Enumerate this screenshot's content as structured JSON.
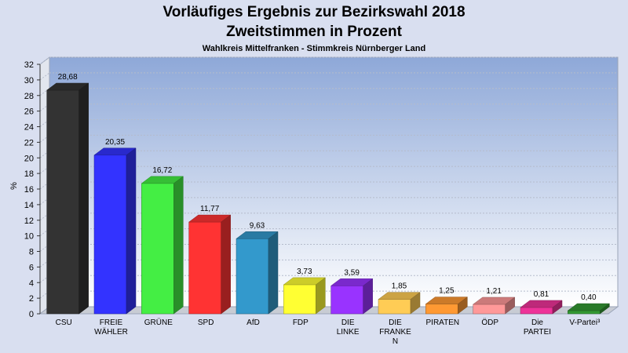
{
  "chart_data": {
    "type": "bar",
    "title": "Vorläufiges Ergebnis zur Bezirkswahl 2018",
    "subtitle": "Zweitstimmen in Prozent",
    "subsubtitle": "Wahlkreis Mittelfranken - Stimmkreis Nürnberger Land",
    "ylabel": "%",
    "xlabel": "",
    "ylim": [
      0,
      32
    ],
    "yticks": [
      "0",
      "2",
      "4",
      "6",
      "8",
      "10",
      "12",
      "14",
      "16",
      "18",
      "20",
      "22",
      "24",
      "26",
      "28",
      "30",
      "32"
    ],
    "grid": true,
    "categories": [
      [
        "CSU"
      ],
      [
        "FREIE",
        "WÄHLER"
      ],
      [
        "GRÜNE"
      ],
      [
        "SPD"
      ],
      [
        "AfD"
      ],
      [
        "FDP"
      ],
      [
        "DIE",
        "LINKE"
      ],
      [
        "DIE",
        "FRANKE",
        "N"
      ],
      [
        "PIRATEN"
      ],
      [
        "ÖDP"
      ],
      [
        "Die",
        "PARTEI"
      ],
      [
        "V-Partei³"
      ]
    ],
    "values": [
      28.68,
      20.35,
      16.72,
      11.77,
      9.63,
      3.73,
      3.59,
      1.85,
      1.25,
      1.21,
      0.81,
      0.4
    ],
    "value_labels": [
      "28,68",
      "20,35",
      "16,72",
      "11,77",
      "9,63",
      "3,73",
      "3,59",
      "1,85",
      "1,25",
      "1,21",
      "0,81",
      "0,40"
    ],
    "colors": [
      "#333333",
      "#3333ff",
      "#44ee44",
      "#ff3333",
      "#3399cc",
      "#ffff33",
      "#9933ff",
      "#ffcc55",
      "#ff9933",
      "#ff9999",
      "#ee3399",
      "#339933"
    ]
  }
}
